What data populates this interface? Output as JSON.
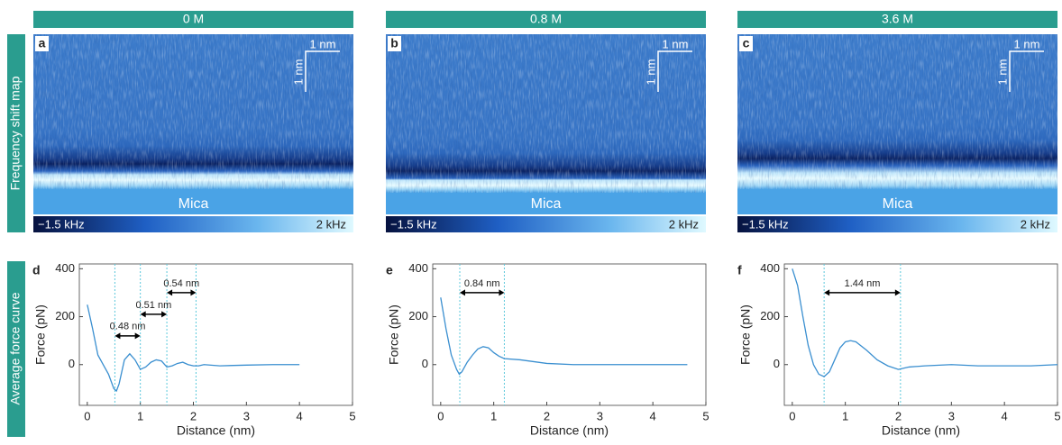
{
  "row_labels": [
    "Frequency shift map",
    "Average force curve"
  ],
  "maps": [
    {
      "header": "0 M",
      "panel": "a",
      "scale_x": "1 nm",
      "scale_y": "1 nm",
      "substrate": "Mica",
      "cbar_min": "−1.5 kHz",
      "cbar_max": "2 kHz"
    },
    {
      "header": "0.8 M",
      "panel": "b",
      "scale_x": "1 nm",
      "scale_y": "1 nm",
      "substrate": "Mica",
      "cbar_min": "−1.5 kHz",
      "cbar_max": "2 kHz"
    },
    {
      "header": "3.6 M",
      "panel": "c",
      "scale_x": "1 nm",
      "scale_y": "1 nm",
      "substrate": "Mica",
      "cbar_min": "−1.5 kHz",
      "cbar_max": "2 kHz"
    }
  ],
  "chart_data": [
    {
      "type": "line",
      "panel": "d",
      "xlabel": "Distance (nm)",
      "ylabel": "Force (pN)",
      "color": "#3a8fd0",
      "x": [
        0,
        0.1,
        0.2,
        0.3,
        0.4,
        0.5,
        0.55,
        0.6,
        0.7,
        0.8,
        0.9,
        1.0,
        1.1,
        1.2,
        1.3,
        1.4,
        1.5,
        1.6,
        1.7,
        1.8,
        1.9,
        2.0,
        2.1,
        2.2,
        2.5,
        3.0,
        3.5,
        4.0
      ],
      "values": [
        250,
        150,
        40,
        0,
        -40,
        -100,
        -110,
        -80,
        20,
        45,
        20,
        -20,
        -10,
        10,
        20,
        15,
        -10,
        -5,
        5,
        10,
        0,
        -5,
        -5,
        0,
        -5,
        -2,
        0,
        0
      ],
      "xlim": [
        -0.15,
        5
      ],
      "ylim": [
        -170,
        420
      ],
      "xticks": [
        0,
        1,
        2,
        3,
        4,
        5
      ],
      "yticks": [
        0,
        200,
        400
      ],
      "vlines": [
        0.52,
        1.0,
        1.5,
        2.05
      ],
      "arrows": [
        {
          "label": "0.48 nm",
          "from": 0.52,
          "to": 1.0,
          "y": 120
        },
        {
          "label": "0.51 nm",
          "from": 1.0,
          "to": 1.5,
          "y": 210
        },
        {
          "label": "0.54 nm",
          "from": 1.5,
          "to": 2.05,
          "y": 300
        }
      ]
    },
    {
      "type": "line",
      "panel": "e",
      "xlabel": "Distance (nm)",
      "ylabel": "Force (pN)",
      "color": "#3a8fd0",
      "x": [
        0,
        0.1,
        0.2,
        0.3,
        0.35,
        0.4,
        0.5,
        0.6,
        0.7,
        0.8,
        0.9,
        1.0,
        1.1,
        1.2,
        1.5,
        2.0,
        2.5,
        3.0,
        3.5,
        4.0,
        4.65
      ],
      "values": [
        280,
        150,
        40,
        -20,
        -40,
        -30,
        10,
        40,
        65,
        75,
        70,
        50,
        35,
        25,
        20,
        5,
        0,
        0,
        0,
        0,
        0
      ],
      "xlim": [
        -0.15,
        5
      ],
      "ylim": [
        -170,
        420
      ],
      "xticks": [
        0,
        1,
        2,
        3,
        4,
        5
      ],
      "yticks": [
        0,
        200,
        400
      ],
      "vlines": [
        0.36,
        1.2
      ],
      "arrows": [
        {
          "label": "0.84 nm",
          "from": 0.36,
          "to": 1.2,
          "y": 300
        }
      ]
    },
    {
      "type": "line",
      "panel": "f",
      "xlabel": "Distance (nm)",
      "ylabel": "Force (pN)",
      "color": "#3a8fd0",
      "x": [
        0,
        0.1,
        0.2,
        0.3,
        0.4,
        0.5,
        0.6,
        0.7,
        0.8,
        0.9,
        1.0,
        1.1,
        1.2,
        1.4,
        1.6,
        1.8,
        2.0,
        2.2,
        2.5,
        3.0,
        3.5,
        4.0,
        4.5,
        5.0
      ],
      "values": [
        400,
        330,
        200,
        80,
        0,
        -40,
        -50,
        -30,
        20,
        70,
        95,
        100,
        95,
        60,
        20,
        -5,
        -20,
        -10,
        -5,
        0,
        -5,
        -5,
        -5,
        0
      ],
      "xlim": [
        -0.15,
        5
      ],
      "ylim": [
        -170,
        420
      ],
      "xticks": [
        0,
        1,
        2,
        3,
        4,
        5
      ],
      "yticks": [
        0,
        200,
        400
      ],
      "vlines": [
        0.6,
        2.04
      ],
      "arrows": [
        {
          "label": "1.44 nm",
          "from": 0.6,
          "to": 2.04,
          "y": 300
        }
      ]
    }
  ]
}
